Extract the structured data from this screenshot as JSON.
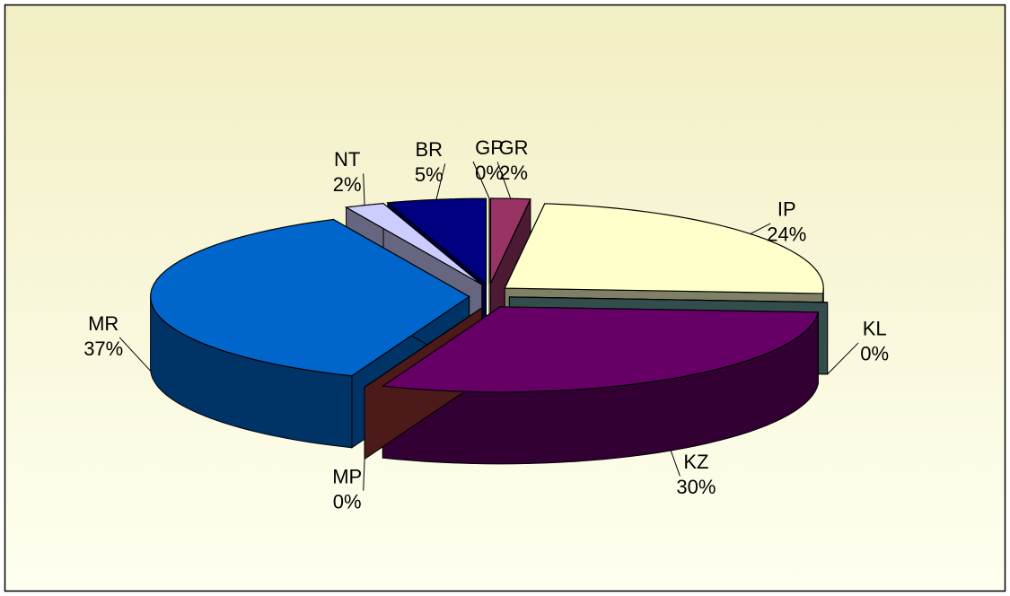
{
  "chart_data": {
    "type": "pie",
    "three_d": true,
    "exploded": true,
    "categories": [
      "GP",
      "GR",
      "IP",
      "KL",
      "KZ",
      "MP",
      "MR",
      "NT",
      "BR"
    ],
    "values": [
      0,
      2,
      24,
      0,
      30,
      0,
      37,
      2,
      5
    ],
    "value_labels": [
      "0%",
      "2%",
      "24%",
      "0%",
      "30%",
      "0%",
      "37%",
      "2%",
      "5%"
    ],
    "colors": [
      "#cc3366",
      "#993366",
      "#ffffcc",
      "#669999",
      "#660066",
      "#993333",
      "#0066cc",
      "#ccccff",
      "#000080"
    ]
  }
}
